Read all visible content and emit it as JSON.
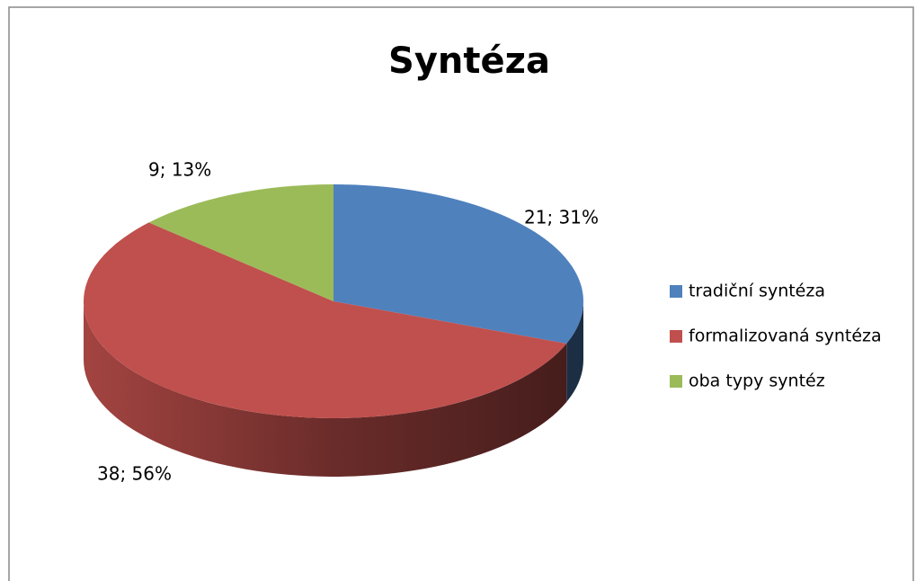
{
  "chart_data": {
    "type": "pie",
    "title": "Syntéza",
    "categories": [
      "tradiční syntéza",
      "formalizovaná syntéza",
      "oba typy syntéz"
    ],
    "values": [
      21,
      38,
      9
    ],
    "value_labels": [
      "21; 31%",
      "38; 56%",
      "9; 13%"
    ],
    "colors": [
      "#4f81bd",
      "#c0504d",
      "#9bbb59"
    ],
    "legend": "right",
    "three_d": true
  }
}
